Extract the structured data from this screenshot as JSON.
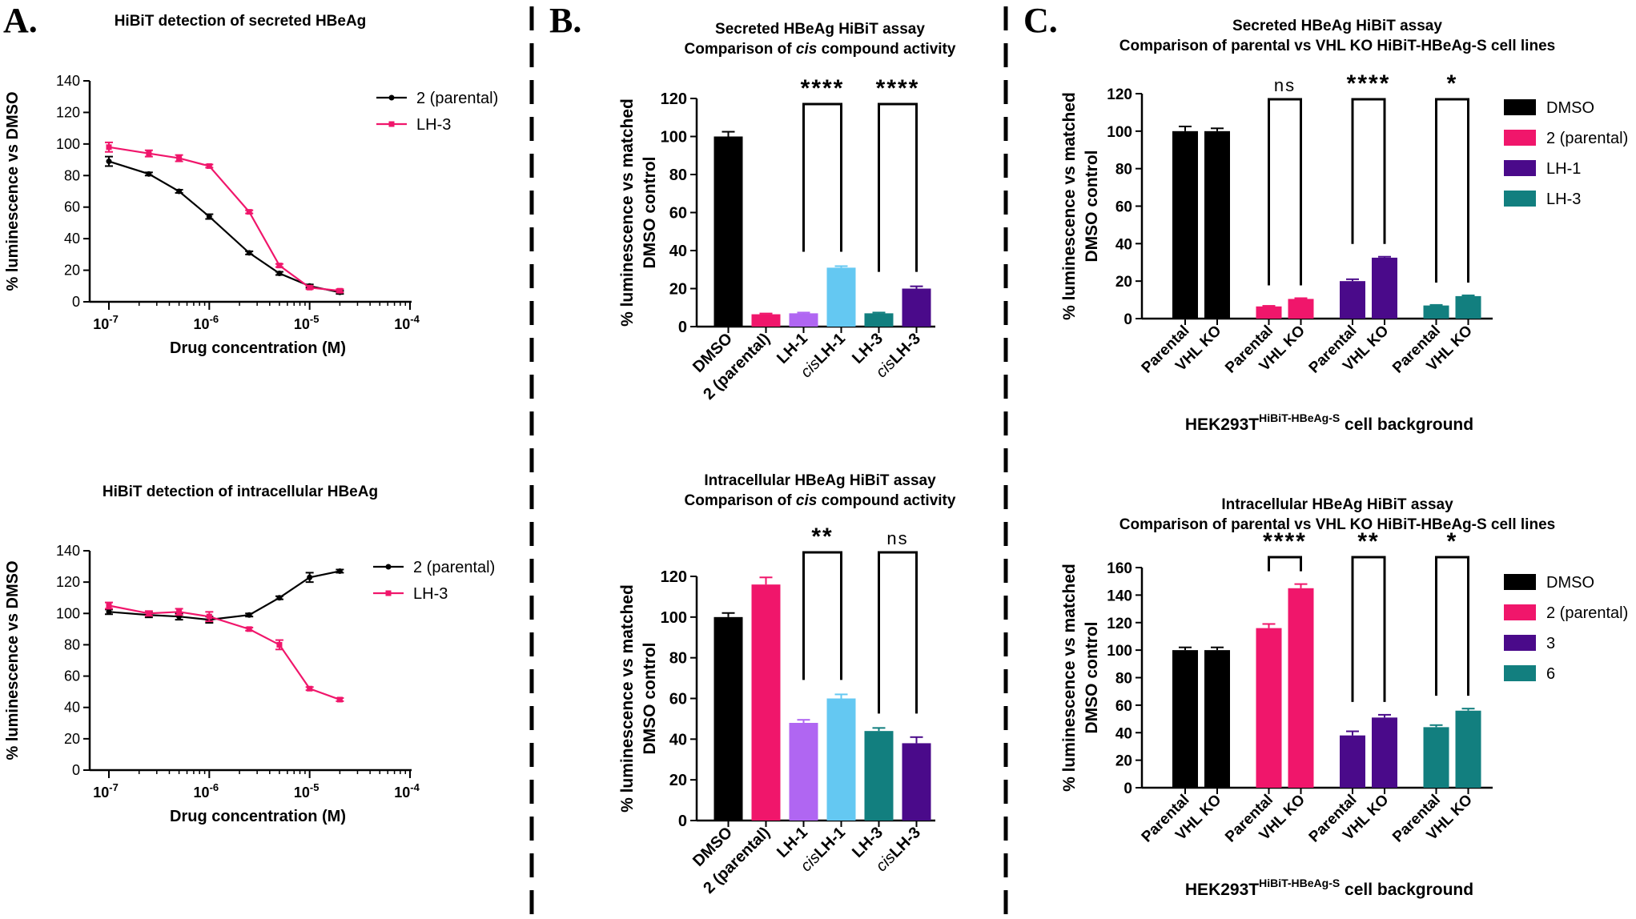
{
  "panels": {
    "A": "A.",
    "B": "B.",
    "C": "C."
  },
  "colors": {
    "black": "#000000",
    "pink": "#f0166b",
    "purple": "#b066f2",
    "lightblue": "#64c8f2",
    "teal": "#127f7f",
    "darkpurple": "#4a0a8a"
  },
  "chart_data": [
    {
      "id": "A1",
      "type": "line",
      "title": "HiBiT detection of secreted HBeAg",
      "xlabel": "Drug concentration (M)",
      "ylabel": "% luminescence vs DMSO",
      "xscale": "log",
      "xlim": [
        1e-07,
        0.0001
      ],
      "ylim": [
        0,
        140
      ],
      "xticks": [
        "10-7",
        "10-6",
        "10-5",
        "10-4"
      ],
      "yticks": [
        0,
        20,
        40,
        60,
        80,
        100,
        120,
        140
      ],
      "legend": "top-right",
      "x": [
        1e-07,
        2.5e-07,
        5e-07,
        1e-06,
        2.5e-06,
        5e-06,
        1e-05,
        2e-05
      ],
      "series": [
        {
          "name": "2 (parental)",
          "color": "#000000",
          "values": [
            89,
            81,
            70,
            54,
            31,
            18,
            10,
            6
          ],
          "errors": [
            3,
            1,
            1,
            1.5,
            1,
            1,
            1,
            1
          ]
        },
        {
          "name": "LH-3",
          "color": "#f0166b",
          "values": [
            98,
            94,
            91,
            86,
            57,
            23,
            9,
            7
          ],
          "errors": [
            3,
            2,
            2,
            1,
            1,
            1,
            1,
            1
          ]
        }
      ]
    },
    {
      "id": "A2",
      "type": "line",
      "title": "HiBiT detection of intracellular HBeAg",
      "xlabel": "Drug concentration (M)",
      "ylabel": "% luminescence vs DMSO",
      "xscale": "log",
      "xlim": [
        1e-07,
        0.0001
      ],
      "ylim": [
        0,
        140
      ],
      "xticks": [
        "10-7",
        "10-6",
        "10-5",
        "10-4"
      ],
      "yticks": [
        0,
        20,
        40,
        60,
        80,
        100,
        120,
        140
      ],
      "legend": "top-right",
      "x": [
        1e-07,
        2.5e-07,
        5e-07,
        1e-06,
        2.5e-06,
        5e-06,
        1e-05,
        2e-05
      ],
      "series": [
        {
          "name": "2 (parental)",
          "color": "#000000",
          "values": [
            101,
            99,
            98,
            96,
            99,
            110,
            123,
            127
          ],
          "errors": [
            1.5,
            1.5,
            2,
            2,
            1,
            1,
            3,
            1
          ]
        },
        {
          "name": "LH-3",
          "color": "#f0166b",
          "values": [
            105,
            100,
            101,
            98,
            90,
            80,
            52,
            45
          ],
          "errors": [
            2,
            1.5,
            2,
            3,
            1,
            3,
            1,
            1
          ]
        }
      ]
    },
    {
      "id": "B1",
      "type": "bar",
      "title": "Secreted HBeAg HiBiT assay",
      "subtitle_prefix": "Comparison of ",
      "subtitle_italic": "cis",
      "subtitle_suffix": " compound activity",
      "ylabel_line1": "% luminescence vs matched",
      "ylabel_line2": "DMSO control",
      "ylim": [
        0,
        120
      ],
      "yticks": [
        0,
        20,
        40,
        60,
        80,
        100,
        120
      ],
      "categories": [
        "DMSO",
        "2 (parental)",
        "LH-1",
        "cisLH-1",
        "LH-3",
        "cisLH-3"
      ],
      "category_italic_prefix": [
        "",
        "",
        "",
        "cis",
        "",
        "cis"
      ],
      "category_rest": [
        "DMSO",
        "2 (parental)",
        "LH-1",
        "LH-1",
        "LH-3",
        "LH-3"
      ],
      "values": [
        100,
        6.5,
        7,
        31,
        7,
        20
      ],
      "errors": [
        2.5,
        0.4,
        0.4,
        0.8,
        0.4,
        1.2
      ],
      "bar_colors": [
        "#000000",
        "#f0166b",
        "#b066f2",
        "#64c8f2",
        "#127f7f",
        "#4a0a8a"
      ],
      "brackets": [
        {
          "from": 2,
          "to": 3,
          "label": "****"
        },
        {
          "from": 4,
          "to": 5,
          "label": "****"
        }
      ]
    },
    {
      "id": "B2",
      "type": "bar",
      "title": "Intracellular HBeAg HiBiT assay",
      "subtitle_prefix": "Comparison of ",
      "subtitle_italic": "cis",
      "subtitle_suffix": " compound activity",
      "ylabel_line1": "% luminescence vs matched",
      "ylabel_line2": "DMSO control",
      "ylim": [
        0,
        120
      ],
      "yticks": [
        0,
        20,
        40,
        60,
        80,
        100,
        120
      ],
      "categories": [
        "DMSO",
        "2 (parental)",
        "LH-1",
        "cisLH-1",
        "LH-3",
        "cisLH-3"
      ],
      "category_italic_prefix": [
        "",
        "",
        "",
        "cis",
        "",
        "cis"
      ],
      "category_rest": [
        "DMSO",
        "2 (parental)",
        "LH-1",
        "LH-1",
        "LH-3",
        "LH-3"
      ],
      "values": [
        100,
        116,
        48,
        60,
        44,
        38
      ],
      "errors": [
        2,
        3.5,
        1.5,
        2,
        1.5,
        3
      ],
      "bar_colors": [
        "#000000",
        "#f0166b",
        "#b066f2",
        "#64c8f2",
        "#127f7f",
        "#4a0a8a"
      ],
      "brackets": [
        {
          "from": 2,
          "to": 3,
          "label": "**"
        },
        {
          "from": 4,
          "to": 5,
          "label": "ns"
        }
      ]
    },
    {
      "id": "C1",
      "type": "bar",
      "title": "Secreted HBeAg HiBiT assay",
      "subtitle": "Comparison of parental vs VHL KO HiBiT-HBeAg-S cell lines",
      "ylabel_line1": "% luminescence vs matched",
      "ylabel_line2": "DMSO control",
      "xlabel_main": "HEK293T",
      "xlabel_sup": "HiBiT-HBeAg-S",
      "xlabel_suffix": " cell background",
      "ylim": [
        0,
        120
      ],
      "yticks": [
        0,
        20,
        40,
        60,
        80,
        100,
        120
      ],
      "groups": [
        "DMSO",
        "2 (parental)",
        "LH-1",
        "LH-3"
      ],
      "group_colors": [
        "#000000",
        "#f0166b",
        "#4a0a8a",
        "#127f7f"
      ],
      "categories": [
        "Parental",
        "VHL KO"
      ],
      "series": [
        {
          "name": "DMSO",
          "values": [
            100,
            100
          ],
          "errors": [
            2.5,
            1.5
          ]
        },
        {
          "name": "2 (parental)",
          "values": [
            6.5,
            10.5
          ],
          "errors": [
            0.3,
            0.4
          ]
        },
        {
          "name": "LH-1",
          "values": [
            20,
            32.5
          ],
          "errors": [
            1,
            0.5
          ]
        },
        {
          "name": "LH-3",
          "values": [
            7,
            12
          ],
          "errors": [
            0.3,
            0.4
          ]
        }
      ],
      "brackets": [
        "ns",
        "****",
        "*"
      ],
      "legend": "right"
    },
    {
      "id": "C2",
      "type": "bar",
      "title": "Intracellular HBeAg HiBiT assay",
      "subtitle": "Comparison of parental vs VHL KO HiBiT-HBeAg-S cell lines",
      "ylabel_line1": "% luminescence vs matched",
      "ylabel_line2": "DMSO control",
      "xlabel_main": "HEK293T",
      "xlabel_sup": "HiBiT-HBeAg-S",
      "xlabel_suffix": " cell background",
      "ylim": [
        0,
        160
      ],
      "yticks": [
        0,
        20,
        40,
        60,
        80,
        100,
        120,
        140,
        160
      ],
      "groups": [
        "DMSO",
        "2 (parental)",
        "3",
        "6"
      ],
      "group_colors": [
        "#000000",
        "#f0166b",
        "#4a0a8a",
        "#127f7f"
      ],
      "categories": [
        "Parental",
        "VHL KO"
      ],
      "series": [
        {
          "name": "DMSO",
          "values": [
            100,
            100
          ],
          "errors": [
            2,
            2
          ]
        },
        {
          "name": "2 (parental)",
          "values": [
            116,
            145
          ],
          "errors": [
            3,
            3
          ]
        },
        {
          "name": "3",
          "values": [
            38,
            51
          ],
          "errors": [
            3,
            2
          ]
        },
        {
          "name": "6",
          "values": [
            44,
            56
          ],
          "errors": [
            1.5,
            1.5
          ]
        }
      ],
      "brackets": [
        "****",
        "**",
        "*"
      ],
      "legend": "right"
    }
  ]
}
